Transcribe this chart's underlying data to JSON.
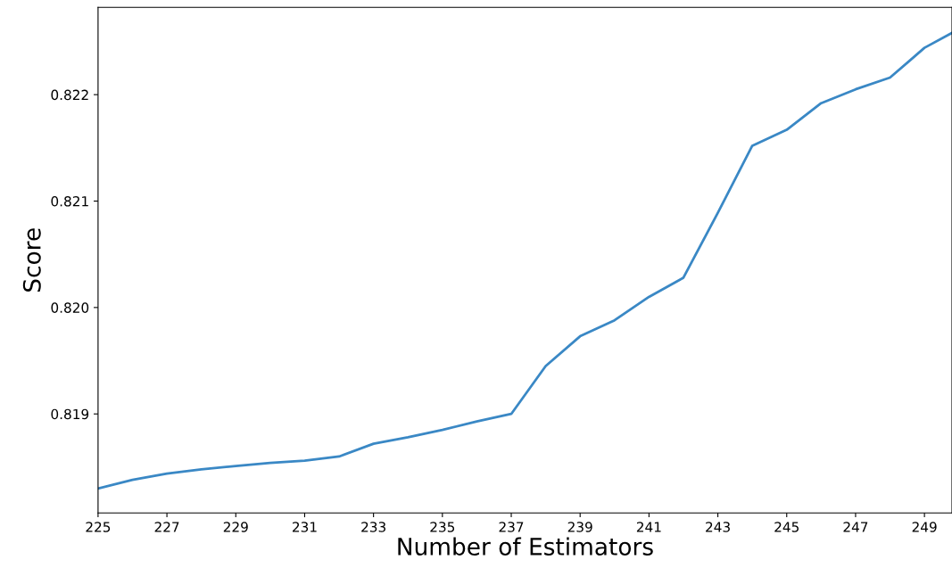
{
  "chart_data": {
    "type": "line",
    "xlabel": "Number of Estimators",
    "ylabel": "Score",
    "x": [
      225,
      226,
      227,
      228,
      229,
      230,
      231,
      232,
      233,
      234,
      235,
      236,
      237,
      238,
      239,
      240,
      241,
      242,
      243,
      244,
      245,
      246,
      247,
      248,
      249,
      249.8
    ],
    "series": [
      {
        "color": "#3a88c5",
        "values": [
          0.8183,
          0.81838,
          0.81844,
          0.81848,
          0.81851,
          0.81854,
          0.81856,
          0.8186,
          0.81872,
          0.81878,
          0.81885,
          0.81893,
          0.819,
          0.81945,
          0.81973,
          0.81988,
          0.8201,
          0.82028,
          0.82089,
          0.82152,
          0.82167,
          0.82192,
          0.82205,
          0.82216,
          0.82244,
          0.82258
        ]
      }
    ],
    "xlim": [
      225,
      249.8
    ],
    "ylim": [
      0.81807,
      0.82282
    ],
    "xticks": [
      225,
      227,
      229,
      231,
      233,
      235,
      237,
      239,
      241,
      243,
      245,
      247,
      249
    ],
    "yticks": [
      0.819,
      {
        "value": 0.82,
        "label": "0.820"
      },
      0.821,
      0.822
    ],
    "grid": false,
    "legend": false,
    "marker": "none",
    "line_style": "solid"
  }
}
